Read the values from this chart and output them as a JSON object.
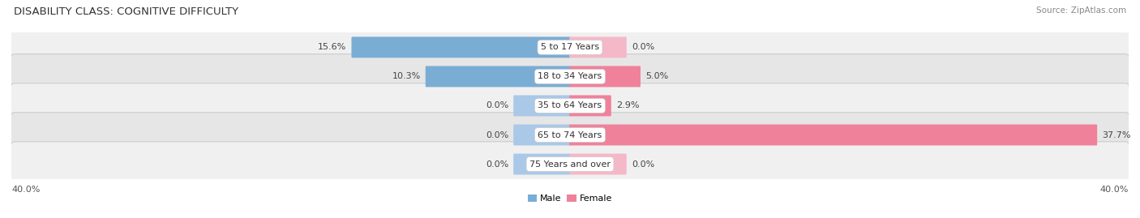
{
  "title": "DISABILITY CLASS: COGNITIVE DIFFICULTY",
  "source": "Source: ZipAtlas.com",
  "categories": [
    "5 to 17 Years",
    "18 to 34 Years",
    "35 to 64 Years",
    "65 to 74 Years",
    "75 Years and over"
  ],
  "male_values": [
    15.6,
    10.3,
    0.0,
    0.0,
    0.0
  ],
  "female_values": [
    0.0,
    5.0,
    2.9,
    37.7,
    0.0
  ],
  "max_val": 40.0,
  "male_color": "#7aadd4",
  "male_color_stub": "#aac8e8",
  "female_color": "#f0819a",
  "female_color_stub": "#f5b8c8",
  "row_color_odd": "#f0f0f0",
  "row_color_even": "#e6e6e6",
  "title_fontsize": 9.5,
  "source_fontsize": 7.5,
  "label_fontsize": 8.0,
  "value_fontsize": 8.0,
  "axis_label_left": "40.0%",
  "axis_label_right": "40.0%",
  "stub_size": 4.0
}
